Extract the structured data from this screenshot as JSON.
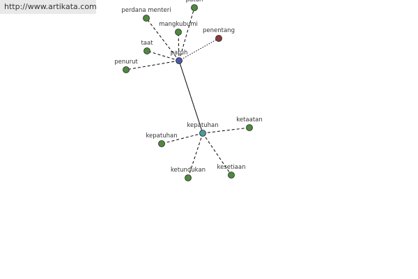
{
  "header": {
    "watermark": "http://www.artikata.com"
  },
  "nodes": [
    {
      "label": "patuh"
    },
    {
      "label": "perdana menteri"
    },
    {
      "label": "patuh"
    },
    {
      "label": "mangkubumi"
    },
    {
      "label": "penentang"
    },
    {
      "label": "taat"
    },
    {
      "label": "penurut"
    },
    {
      "label": "kepatuhan"
    },
    {
      "label": "ketaatan"
    },
    {
      "label": "kepatuhan"
    },
    {
      "label": "ketundukan"
    },
    {
      "label": "kesetiaan"
    }
  ]
}
